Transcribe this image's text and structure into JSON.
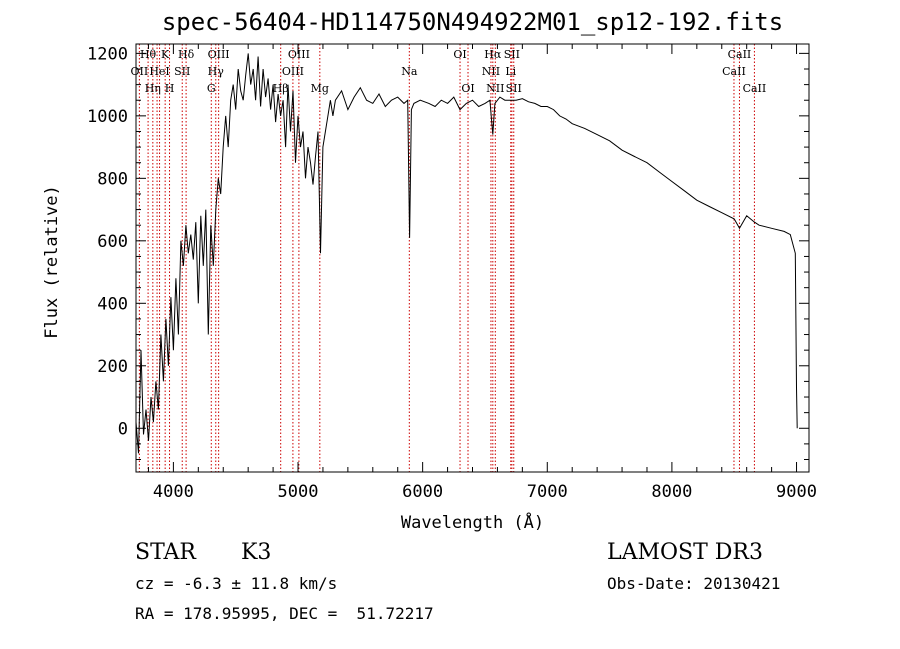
{
  "title": "spec-56404-HD114750N494922M01_sp12-192.fits",
  "info": {
    "class_label": "STAR",
    "subclass": "K3",
    "survey": "LAMOST DR3",
    "cz": "cz = -6.3 ± 11.8 km/s",
    "obs_date": "Obs-Date: 20130421",
    "radec": "RA = 178.95995, DEC =  51.72217"
  },
  "chart_data": {
    "type": "line",
    "xlabel": "Wavelength (Å)",
    "ylabel": "Flux (relative)",
    "xlim": [
      3700,
      9100
    ],
    "ylim": [
      -140,
      1230
    ],
    "xticks": [
      4000,
      5000,
      6000,
      7000,
      8000,
      9000
    ],
    "yticks": [
      0,
      200,
      400,
      600,
      800,
      1000,
      1200
    ],
    "grid": false,
    "series": [
      {
        "x": [
          3700,
          3720,
          3740,
          3760,
          3780,
          3800,
          3820,
          3840,
          3860,
          3880,
          3900,
          3920,
          3940,
          3960,
          3980,
          4000,
          4020,
          4040,
          4060,
          4080,
          4100,
          4120,
          4140,
          4160,
          4180,
          4200,
          4220,
          4240,
          4260,
          4280,
          4300,
          4320,
          4340,
          4360,
          4380,
          4400,
          4420,
          4440,
          4460,
          4480,
          4500,
          4520,
          4540,
          4560,
          4580,
          4600,
          4620,
          4640,
          4660,
          4680,
          4700,
          4720,
          4740,
          4760,
          4780,
          4800,
          4820,
          4840,
          4860,
          4880,
          4900,
          4920,
          4940,
          4960,
          4980,
          5000,
          5020,
          5040,
          5060,
          5080,
          5100,
          5120,
          5140,
          5160,
          5180,
          5200,
          5220,
          5240,
          5260,
          5280,
          5300,
          5350,
          5400,
          5450,
          5500,
          5550,
          5600,
          5650,
          5700,
          5750,
          5800,
          5850,
          5880,
          5895,
          5910,
          5930,
          5980,
          6050,
          6100,
          6150,
          6200,
          6250,
          6300,
          6350,
          6400,
          6450,
          6500,
          6540,
          6563,
          6580,
          6620,
          6660,
          6700,
          6750,
          6800,
          6850,
          6900,
          6950,
          7000,
          7050,
          7100,
          7150,
          7200,
          7300,
          7400,
          7500,
          7600,
          7700,
          7800,
          7900,
          8000,
          8100,
          8200,
          8300,
          8400,
          8500,
          8542,
          8600,
          8662,
          8700,
          8800,
          8900,
          8950,
          8990,
          9000,
          9005
        ],
        "y": [
          20,
          -80,
          250,
          -20,
          60,
          -40,
          100,
          20,
          150,
          60,
          300,
          150,
          350,
          200,
          420,
          250,
          480,
          300,
          600,
          520,
          650,
          560,
          620,
          540,
          660,
          400,
          680,
          520,
          700,
          300,
          650,
          520,
          700,
          800,
          750,
          900,
          1000,
          900,
          1050,
          1100,
          1020,
          1150,
          1080,
          1050,
          1130,
          1200,
          1100,
          1150,
          1050,
          1190,
          1030,
          1150,
          1060,
          1120,
          1020,
          1100,
          980,
          1070,
          1000,
          1050,
          900,
          1100,
          950,
          1080,
          850,
          1000,
          900,
          950,
          800,
          900,
          850,
          780,
          870,
          950,
          560,
          900,
          950,
          1000,
          1050,
          1000,
          1050,
          1080,
          1020,
          1060,
          1090,
          1050,
          1040,
          1070,
          1030,
          1050,
          1060,
          1040,
          1050,
          610,
          1020,
          1040,
          1050,
          1040,
          1030,
          1050,
          1040,
          1060,
          1020,
          1040,
          1050,
          1030,
          1040,
          1050,
          940,
          1040,
          1060,
          1050,
          1050,
          1050,
          1055,
          1045,
          1040,
          1030,
          1030,
          1020,
          1000,
          990,
          975,
          960,
          940,
          920,
          890,
          870,
          850,
          820,
          790,
          760,
          730,
          710,
          690,
          670,
          640,
          680,
          660,
          650,
          640,
          630,
          620,
          560,
          130,
          0
        ]
      }
    ],
    "lines": [
      {
        "x": 3727,
        "label": "OII",
        "row": 2
      },
      {
        "x": 3797,
        "label": "Hθ",
        "row": 1
      },
      {
        "x": 3835,
        "label": "Hη",
        "row": 3
      },
      {
        "x": 3869,
        "label": "",
        "row": 0
      },
      {
        "x": 3889,
        "label": "HeI",
        "row": 2
      },
      {
        "x": 3934,
        "label": "K",
        "row": 1
      },
      {
        "x": 3969,
        "label": "H",
        "row": 3
      },
      {
        "x": 4071,
        "label": "SII",
        "row": 2
      },
      {
        "x": 4102,
        "label": "Hδ",
        "row": 1
      },
      {
        "x": 4304,
        "label": "G",
        "row": 3
      },
      {
        "x": 4340,
        "label": "Hγ",
        "row": 2
      },
      {
        "x": 4363,
        "label": "OIII",
        "row": 1
      },
      {
        "x": 4861,
        "label": "Hβ",
        "row": 3
      },
      {
        "x": 4959,
        "label": "OIII",
        "row": 2
      },
      {
        "x": 5007,
        "label": "OIII",
        "row": 1
      },
      {
        "x": 5175,
        "label": "Mg",
        "row": 3
      },
      {
        "x": 5893,
        "label": "Na",
        "row": 2
      },
      {
        "x": 6300,
        "label": "OI",
        "row": 1
      },
      {
        "x": 6364,
        "label": "OI",
        "row": 3
      },
      {
        "x": 6548,
        "label": "NII",
        "row": 2
      },
      {
        "x": 6563,
        "label": "Hα",
        "row": 1
      },
      {
        "x": 6583,
        "label": "NII",
        "row": 3
      },
      {
        "x": 6707,
        "label": "Li",
        "row": 2
      },
      {
        "x": 6716,
        "label": "SII",
        "row": 1
      },
      {
        "x": 6731,
        "label": "SII",
        "row": 3
      },
      {
        "x": 8498,
        "label": "CaII",
        "row": 2
      },
      {
        "x": 8542,
        "label": "CaII",
        "row": 1
      },
      {
        "x": 8662,
        "label": "CaII",
        "row": 3
      }
    ]
  }
}
